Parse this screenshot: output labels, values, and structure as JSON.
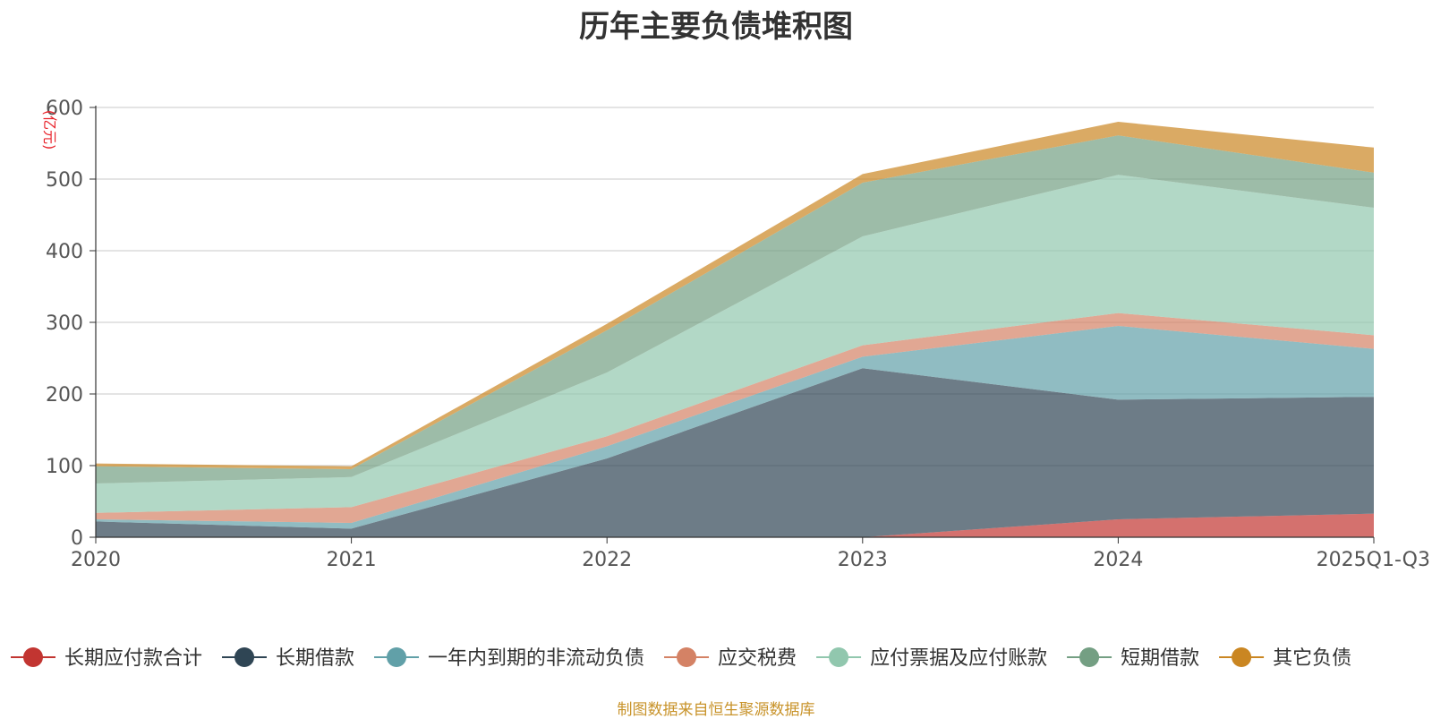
{
  "colors": {
    "source_note": "#c8932a",
    "unit_label": "#e8242c",
    "grid": "#c8c8c8",
    "axis": "#333333",
    "tick_text": "#555555"
  },
  "chart_data": {
    "type": "area",
    "stacked": true,
    "title": "历年主要负债堆积图",
    "ylabel": "(亿元)",
    "xlabel": "",
    "categories": [
      "2020",
      "2021",
      "2022",
      "2023",
      "2024",
      "2025Q1-Q3"
    ],
    "ylim": [
      0,
      600
    ],
    "yticks": [
      0,
      100,
      200,
      300,
      400,
      500,
      600
    ],
    "grid": true,
    "legend_position": "bottom",
    "series": [
      {
        "name": "长期应付款合计",
        "color": "#c23531",
        "values": [
          0,
          0,
          0,
          0,
          25,
          33
        ]
      },
      {
        "name": "长期借款",
        "color": "#2f4554",
        "values": [
          22,
          12,
          110,
          236,
          167,
          163
        ]
      },
      {
        "name": "一年内到期的非流动负债",
        "color": "#61a0a8",
        "values": [
          3,
          8,
          17,
          16,
          103,
          67
        ]
      },
      {
        "name": "应交税费",
        "color": "#d48265",
        "values": [
          9,
          22,
          14,
          16,
          18,
          19
        ]
      },
      {
        "name": "应付票据及应付账款",
        "color": "#91c7ae",
        "values": [
          41,
          42,
          89,
          152,
          193,
          178
        ]
      },
      {
        "name": "短期借款",
        "color": "#749f83",
        "values": [
          24,
          11,
          59,
          75,
          55,
          49
        ]
      },
      {
        "name": "其它负债",
        "color": "#ca8622",
        "values": [
          4,
          4,
          9,
          12,
          19,
          35
        ]
      }
    ]
  },
  "footer": {
    "source_note": "制图数据来自恒生聚源数据库"
  }
}
